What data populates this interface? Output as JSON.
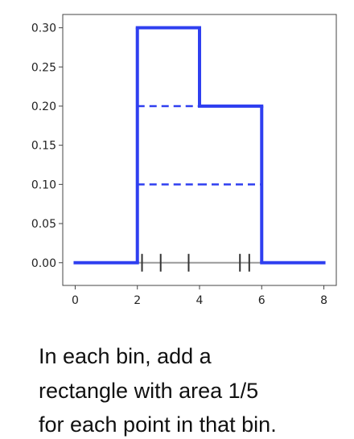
{
  "chart_data": {
    "type": "histogram",
    "bins": [
      0,
      2,
      4,
      6,
      8
    ],
    "values": [
      0,
      0.3,
      0.2,
      0
    ],
    "points": [
      2.15,
      2.75,
      3.65,
      5.3,
      5.6
    ],
    "color": "#2f3ff0",
    "xlim": [
      -0.4,
      8.4
    ],
    "ylim": [
      -0.029,
      0.317
    ],
    "xticks": [
      0,
      2,
      4,
      6,
      8
    ],
    "yticks": [
      {
        "value": 0,
        "label": "0.00"
      },
      {
        "value": 0.05,
        "label": "0.05"
      },
      {
        "value": 0.1,
        "label": "0.10"
      },
      {
        "value": 0.15,
        "label": "0.15"
      },
      {
        "value": 0.2,
        "label": "0.20"
      },
      {
        "value": 0.25,
        "label": "0.25"
      },
      {
        "value": 0.3,
        "label": "0.30"
      }
    ]
  },
  "caption": [
    "In each bin, add a",
    "rectangle with area 1/5",
    "for each point in that bin."
  ]
}
